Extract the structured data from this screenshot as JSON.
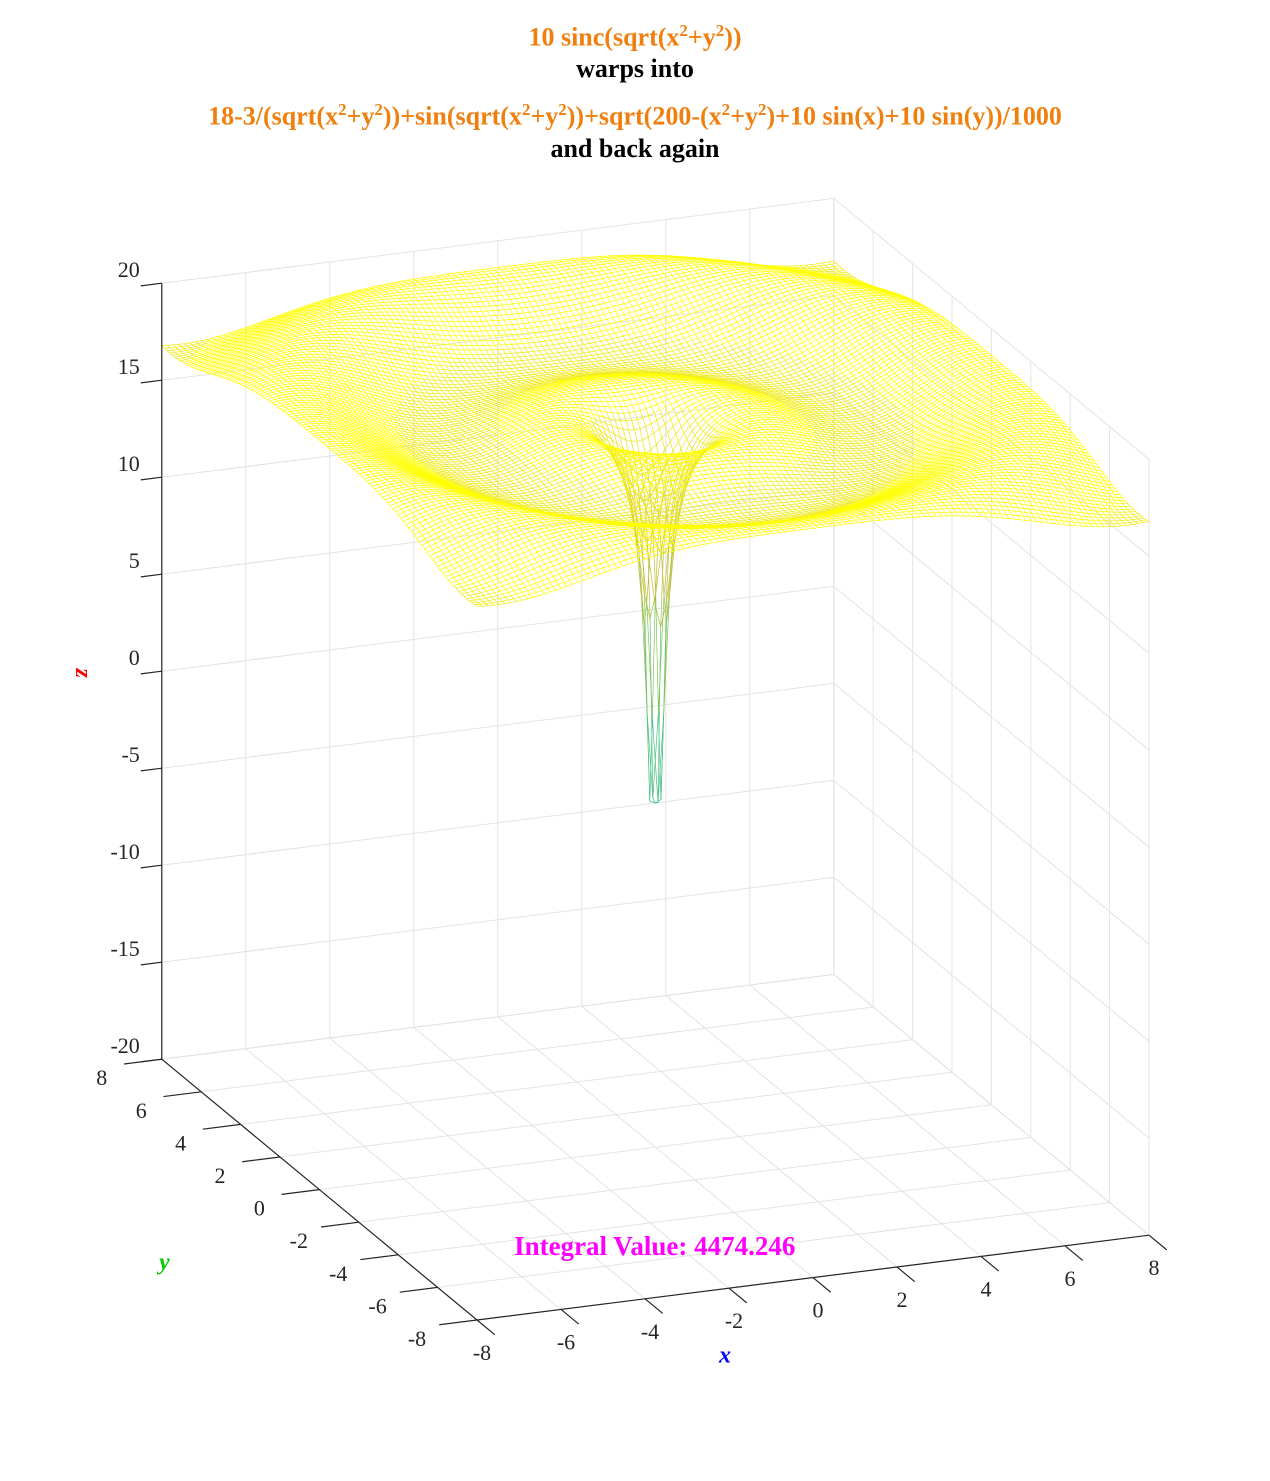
{
  "title": {
    "line1": "10 sinc(sqrt(x²+y²))",
    "line2": "warps into",
    "line3": "18-3/(sqrt(x²+y²))+sin(sqrt(x²+y²))+sqrt(200-(x²+y²)+10 sin(x)+10 sin(y))/1000",
    "line4": "and back again",
    "color_orange": "#F07F0E",
    "color_black": "#000000"
  },
  "annotation": {
    "text": "Integral Value: 4474.246",
    "color": "#FF00FF"
  },
  "chart_data": {
    "type": "surface-mesh",
    "function": "18-3/(sqrt(x^2+y^2))+sin(sqrt(x^2+y^2))+sqrt(200-(x^2+y^2)+10 sin(x)+10 sin(y))/1000",
    "xlabel": "x",
    "ylabel": "y",
    "zlabel": "z",
    "xlabel_color": "#0000FF",
    "ylabel_color": "#00CC00",
    "zlabel_color": "#FF0000",
    "xlim": [
      -8,
      8
    ],
    "ylim": [
      -8,
      8
    ],
    "zlim": [
      -20,
      20
    ],
    "xticks": [
      "-8",
      "-6",
      "-4",
      "-2",
      "0",
      "2",
      "4",
      "6",
      "8"
    ],
    "yticks": [
      "-8",
      "-6",
      "-4",
      "-2",
      "0",
      "2",
      "4",
      "6",
      "8"
    ],
    "zticks": [
      "-20",
      "-15",
      "-10",
      "-5",
      "0",
      "5",
      "10",
      "15",
      "20"
    ],
    "grid": true,
    "colormap": "parula",
    "mesh_color_top": "#FFFF00",
    "colormap_stops": [
      "#3E26A8",
      "#2F7CF6",
      "#18B3C4",
      "#5FC86A",
      "#C6BD32",
      "#F9F50F"
    ]
  }
}
